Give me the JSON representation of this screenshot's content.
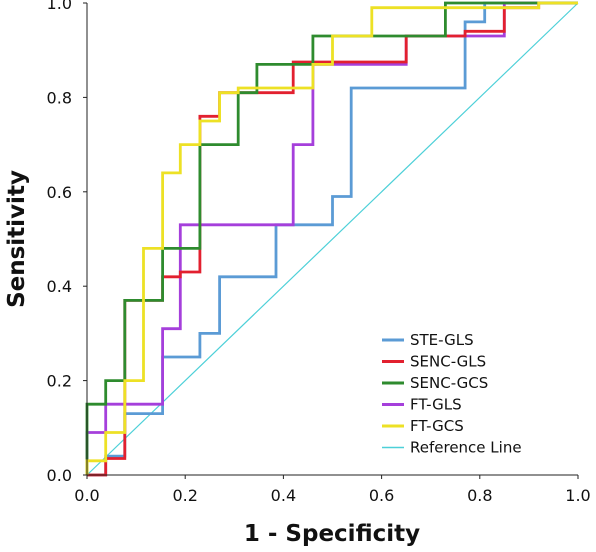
{
  "chart_data": {
    "type": "line",
    "xlabel": "1 - Specificity",
    "ylabel": "Sensitivity",
    "xlim": [
      0,
      1
    ],
    "ylim": [
      0,
      1
    ],
    "x_ticks": [
      "0.0",
      "0.2",
      "0.4",
      "0.6",
      "0.8",
      "1.0"
    ],
    "y_ticks": [
      "0.0",
      "0.2",
      "0.4",
      "0.6",
      "0.8",
      "1.0"
    ],
    "grid": false,
    "legend_position": "bottom-right",
    "series": [
      {
        "name": "STE-GLS",
        "color": "#5B9BD5",
        "points": [
          [
            0,
            0
          ],
          [
            0.038,
            0
          ],
          [
            0.038,
            0.04
          ],
          [
            0.077,
            0.04
          ],
          [
            0.077,
            0.13
          ],
          [
            0.154,
            0.13
          ],
          [
            0.154,
            0.25
          ],
          [
            0.23,
            0.25
          ],
          [
            0.23,
            0.3
          ],
          [
            0.27,
            0.3
          ],
          [
            0.27,
            0.42
          ],
          [
            0.385,
            0.42
          ],
          [
            0.385,
            0.53
          ],
          [
            0.5,
            0.53
          ],
          [
            0.5,
            0.59
          ],
          [
            0.538,
            0.59
          ],
          [
            0.538,
            0.82
          ],
          [
            0.77,
            0.82
          ],
          [
            0.77,
            0.96
          ],
          [
            0.81,
            0.96
          ],
          [
            0.81,
            1.0
          ],
          [
            1.0,
            1.0
          ]
        ]
      },
      {
        "name": "SENC-GLS",
        "color": "#E2202F",
        "points": [
          [
            0,
            0
          ],
          [
            0.038,
            0
          ],
          [
            0.038,
            0.035
          ],
          [
            0.077,
            0.035
          ],
          [
            0.077,
            0.37
          ],
          [
            0.154,
            0.37
          ],
          [
            0.154,
            0.42
          ],
          [
            0.19,
            0.42
          ],
          [
            0.19,
            0.43
          ],
          [
            0.23,
            0.43
          ],
          [
            0.23,
            0.76
          ],
          [
            0.27,
            0.76
          ],
          [
            0.27,
            0.81
          ],
          [
            0.42,
            0.81
          ],
          [
            0.42,
            0.875
          ],
          [
            0.65,
            0.875
          ],
          [
            0.65,
            0.93
          ],
          [
            0.77,
            0.93
          ],
          [
            0.77,
            0.94
          ],
          [
            0.85,
            0.94
          ],
          [
            0.85,
            0.99
          ],
          [
            0.92,
            0.99
          ],
          [
            0.92,
            1.0
          ],
          [
            1.0,
            1.0
          ]
        ]
      },
      {
        "name": "SENC-GCS",
        "color": "#2E8B2E",
        "points": [
          [
            0,
            0
          ],
          [
            0,
            0.15
          ],
          [
            0.038,
            0.15
          ],
          [
            0.038,
            0.2
          ],
          [
            0.077,
            0.2
          ],
          [
            0.077,
            0.37
          ],
          [
            0.154,
            0.37
          ],
          [
            0.154,
            0.48
          ],
          [
            0.23,
            0.48
          ],
          [
            0.23,
            0.7
          ],
          [
            0.308,
            0.7
          ],
          [
            0.308,
            0.81
          ],
          [
            0.346,
            0.81
          ],
          [
            0.346,
            0.87
          ],
          [
            0.46,
            0.87
          ],
          [
            0.46,
            0.93
          ],
          [
            0.73,
            0.93
          ],
          [
            0.73,
            1.0
          ],
          [
            1.0,
            1.0
          ]
        ]
      },
      {
        "name": "FT-GLS",
        "color": "#A53FDB",
        "points": [
          [
            0,
            0
          ],
          [
            0,
            0.09
          ],
          [
            0.038,
            0.09
          ],
          [
            0.038,
            0.15
          ],
          [
            0.154,
            0.15
          ],
          [
            0.154,
            0.31
          ],
          [
            0.19,
            0.31
          ],
          [
            0.19,
            0.53
          ],
          [
            0.42,
            0.53
          ],
          [
            0.42,
            0.7
          ],
          [
            0.46,
            0.7
          ],
          [
            0.46,
            0.87
          ],
          [
            0.65,
            0.87
          ],
          [
            0.65,
            0.93
          ],
          [
            0.85,
            0.93
          ],
          [
            0.85,
            1.0
          ],
          [
            1.0,
            1.0
          ]
        ]
      },
      {
        "name": "FT-GCS",
        "color": "#EDE125",
        "points": [
          [
            0,
            0
          ],
          [
            0,
            0.03
          ],
          [
            0.038,
            0.03
          ],
          [
            0.038,
            0.09
          ],
          [
            0.077,
            0.09
          ],
          [
            0.077,
            0.2
          ],
          [
            0.115,
            0.2
          ],
          [
            0.115,
            0.48
          ],
          [
            0.154,
            0.48
          ],
          [
            0.154,
            0.64
          ],
          [
            0.19,
            0.64
          ],
          [
            0.19,
            0.7
          ],
          [
            0.23,
            0.7
          ],
          [
            0.23,
            0.75
          ],
          [
            0.27,
            0.75
          ],
          [
            0.27,
            0.81
          ],
          [
            0.308,
            0.81
          ],
          [
            0.308,
            0.82
          ],
          [
            0.46,
            0.82
          ],
          [
            0.46,
            0.87
          ],
          [
            0.5,
            0.87
          ],
          [
            0.5,
            0.93
          ],
          [
            0.58,
            0.93
          ],
          [
            0.58,
            0.99
          ],
          [
            0.92,
            0.99
          ],
          [
            0.92,
            1.0
          ],
          [
            1.0,
            1.0
          ]
        ]
      },
      {
        "name": "Reference Line",
        "color": "#4DD0D8",
        "points": [
          [
            0,
            0
          ],
          [
            1,
            1
          ]
        ]
      }
    ]
  }
}
